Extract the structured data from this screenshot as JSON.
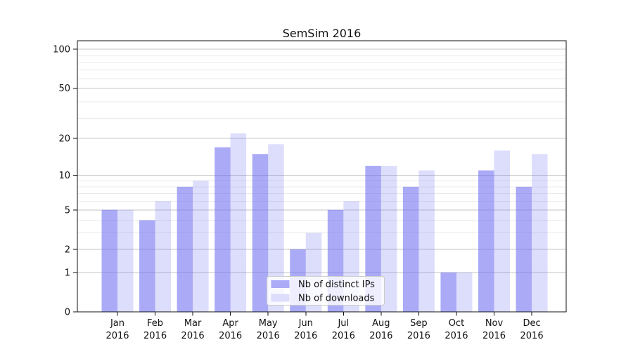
{
  "chart_data": {
    "type": "bar",
    "title": "SemSim 2016",
    "categories": [
      "Jan",
      "Feb",
      "Mar",
      "Apr",
      "May",
      "Jun",
      "Jul",
      "Aug",
      "Sep",
      "Oct",
      "Nov",
      "Dec"
    ],
    "year": "2016",
    "series": [
      {
        "name": "Nb of distinct IPs",
        "values": [
          5,
          4,
          8,
          17,
          15,
          2,
          5,
          12,
          8,
          1,
          11,
          8
        ],
        "fill": "#6a6af1",
        "fill_opacity": 0.57,
        "swatch": "#aaaaf7"
      },
      {
        "name": "Nb of downloads",
        "values": [
          5,
          6,
          9,
          22,
          18,
          3,
          6,
          12,
          11,
          1,
          16,
          15
        ],
        "fill": "#6a6af1",
        "fill_opacity": 0.23,
        "swatch": "#ddddfc"
      }
    ],
    "y_axis": {
      "scale": "log1p",
      "ticks": [
        0,
        1,
        2,
        5,
        10,
        20,
        50,
        100
      ],
      "minor_ticks": [
        3,
        4,
        6,
        7,
        8,
        9,
        29,
        39,
        59,
        69,
        79,
        89
      ],
      "max": 116
    },
    "grid": {
      "major_color": "#c6c6c6",
      "minor_color": "#eaeaea"
    },
    "legend": {
      "position": "lower-center",
      "box_fill": "#ffffff",
      "box_border": "#cccccc"
    },
    "axis_color": "#111111",
    "background": "#ffffff"
  }
}
